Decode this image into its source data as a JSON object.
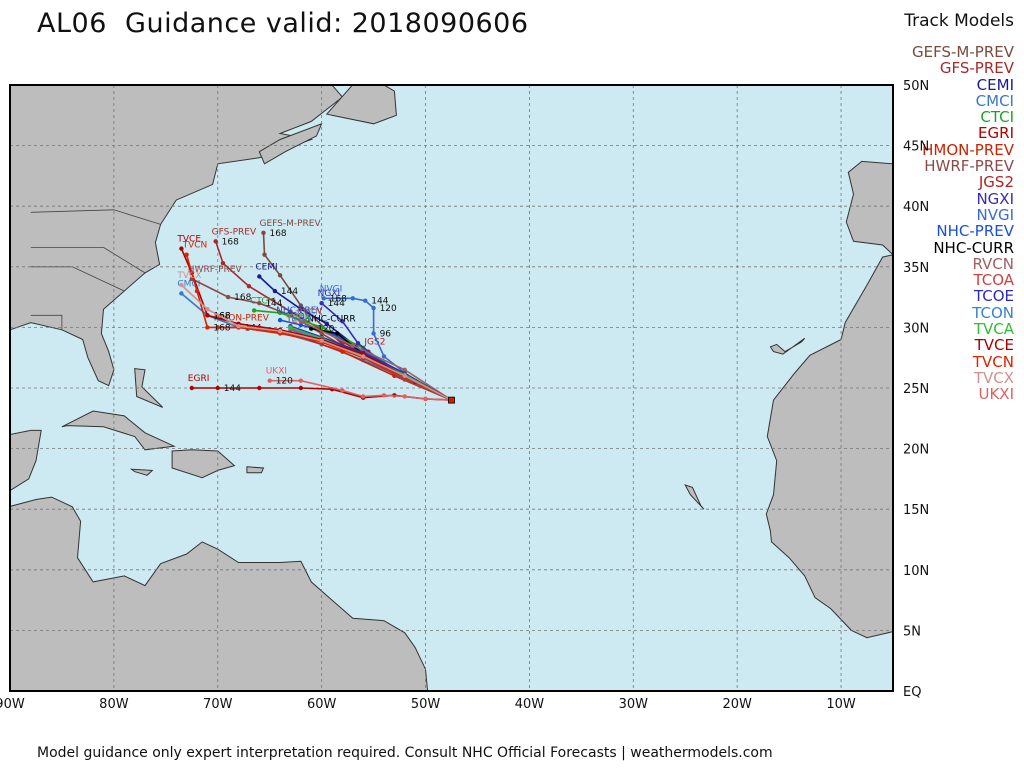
{
  "header": {
    "title": "AL06  Guidance valid: 2018090606"
  },
  "legend": {
    "title": "Track Models",
    "models": [
      {
        "name": "GEFS-M-PREV",
        "color": "#7a4a3a"
      },
      {
        "name": "GFS-PREV",
        "color": "#a52a2a"
      },
      {
        "name": "CEMI",
        "color": "#1a1a99"
      },
      {
        "name": "CMCI",
        "color": "#3a78c8"
      },
      {
        "name": "CTCI",
        "color": "#22a022"
      },
      {
        "name": "EGRI",
        "color": "#b00000"
      },
      {
        "name": "HMON-PREV",
        "color": "#cc2200"
      },
      {
        "name": "HWRF-PREV",
        "color": "#8b4a4a"
      },
      {
        "name": "JGS2",
        "color": "#b22222"
      },
      {
        "name": "NGXI",
        "color": "#3a2ab0"
      },
      {
        "name": "NVGI",
        "color": "#3a6ad0"
      },
      {
        "name": "NHC-PREV",
        "color": "#1a50d8"
      },
      {
        "name": "NHC-CURR",
        "color": "#000000"
      },
      {
        "name": "RVCN",
        "color": "#a06060"
      },
      {
        "name": "TCOA",
        "color": "#d04040"
      },
      {
        "name": "TCOE",
        "color": "#2a2ac0"
      },
      {
        "name": "TCON",
        "color": "#3a80d0"
      },
      {
        "name": "TVCA",
        "color": "#33bb33"
      },
      {
        "name": "TVCE",
        "color": "#aa0000"
      },
      {
        "name": "TVCN",
        "color": "#dd2200"
      },
      {
        "name": "TVCX",
        "color": "#d09090"
      },
      {
        "name": "UKXI",
        "color": "#e06060"
      }
    ]
  },
  "axes": {
    "lat_labels": [
      "50N",
      "45N",
      "40N",
      "35N",
      "30N",
      "25N",
      "20N",
      "15N",
      "10N",
      "5N",
      "EQ"
    ],
    "lon_labels": [
      "90W",
      "80W",
      "70W",
      "60W",
      "50W",
      "40W",
      "30W",
      "20W",
      "10W"
    ]
  },
  "colors": {
    "ocean": "#cde9f2",
    "land": "#bdbdbd",
    "grid": "#777777"
  },
  "map_tracks": [
    {
      "model": "GEFS-M-PREV",
      "color": "#7a4a3a",
      "label": "GEFS-M-PREV",
      "points": [
        [
          -47.5,
          24.0
        ],
        [
          -53,
          26.2
        ],
        [
          -58,
          28.6
        ],
        [
          -62,
          31.8
        ],
        [
          -64,
          34.3
        ],
        [
          -65.5,
          36.0
        ],
        [
          -65.6,
          37.8
        ]
      ],
      "hours": {
        "6": "168"
      }
    },
    {
      "model": "GFS-PREV",
      "color": "#a52a2a",
      "label": "GFS-PREV",
      "points": [
        [
          -47.5,
          24.0
        ],
        [
          -53,
          26.5
        ],
        [
          -58,
          28.8
        ],
        [
          -63,
          31.3
        ],
        [
          -67,
          33.4
        ],
        [
          -69.5,
          35.3
        ],
        [
          -70.2,
          37.1
        ]
      ],
      "hours": {
        "6": "168"
      }
    },
    {
      "model": "CEMI",
      "color": "#1a1a99",
      "label": "CEMI",
      "points": [
        [
          -47.5,
          24.0
        ],
        [
          -52,
          26.0
        ],
        [
          -56,
          28.0
        ],
        [
          -59.5,
          30.3
        ],
        [
          -62,
          31.5
        ],
        [
          -64.5,
          33.0
        ],
        [
          -66,
          34.2
        ]
      ],
      "hours": {
        "5": "144"
      }
    },
    {
      "model": "CMCI",
      "color": "#3a78c8",
      "label": "CMCI",
      "points": [
        [
          -47.5,
          24.0
        ],
        [
          -52,
          25.8
        ],
        [
          -56,
          27.3
        ],
        [
          -60,
          28.6
        ],
        [
          -64,
          29.6
        ],
        [
          -68,
          30.0
        ],
        [
          -71,
          31.0
        ],
        [
          -73.5,
          32.8
        ]
      ],
      "hours": {
        "5": "144",
        "6": "168"
      }
    },
    {
      "model": "CTCI",
      "color": "#22a022",
      "label": "CTCI",
      "points": [
        [
          -47.5,
          24.0
        ],
        [
          -52,
          26.0
        ],
        [
          -56,
          28.3
        ],
        [
          -60,
          30.0
        ],
        [
          -64,
          31.2
        ],
        [
          -66.5,
          31.4
        ]
      ],
      "hours": {}
    },
    {
      "model": "EGRI",
      "color": "#b00000",
      "label": "EGRI",
      "points": [
        [
          -47.5,
          24.0
        ],
        [
          -50,
          24.1
        ],
        [
          -53,
          24.4
        ],
        [
          -56,
          24.2
        ],
        [
          -59,
          24.9
        ],
        [
          -62,
          25.0
        ],
        [
          -66,
          25.0
        ],
        [
          -70,
          25.0
        ],
        [
          -72.5,
          25.0
        ]
      ],
      "hours": {
        "7": "144"
      }
    },
    {
      "model": "HMON-PREV",
      "color": "#cc2200",
      "label": "HMON-PREV",
      "points": [
        [
          -47.5,
          24.0
        ],
        [
          -53,
          26.0
        ],
        [
          -58,
          28.0
        ],
        [
          -63,
          29.5
        ],
        [
          -67,
          30.0
        ],
        [
          -70,
          30.0
        ]
      ],
      "hours": {}
    },
    {
      "model": "HWRF-PREV",
      "color": "#8b4a4a",
      "label": "HWRF-PREV",
      "points": [
        [
          -47.5,
          24.0
        ],
        [
          -52,
          25.7
        ],
        [
          -56,
          27.5
        ],
        [
          -60,
          29.5
        ],
        [
          -63,
          31.0
        ],
        [
          -66,
          32.0
        ],
        [
          -69,
          32.5
        ],
        [
          -72.5,
          34.0
        ]
      ],
      "hours": {
        "5": "144",
        "6": "168"
      }
    },
    {
      "model": "JGS2",
      "color": "#b22222",
      "label": "JGS2",
      "points": [
        [
          -47.5,
          24.0
        ],
        [
          -51,
          25.5
        ],
        [
          -54,
          26.8
        ],
        [
          -55.5,
          28.0
        ]
      ],
      "hours": {}
    },
    {
      "model": "NGXI",
      "color": "#3a2ab0",
      "label": "NGXI",
      "points": [
        [
          -47.5,
          24.0
        ],
        [
          -51,
          25.5
        ],
        [
          -54,
          27.0
        ],
        [
          -56.5,
          28.7
        ],
        [
          -58,
          30.5
        ],
        [
          -60,
          32.0
        ]
      ],
      "hours": {
        "5": "144"
      }
    },
    {
      "model": "NVGI",
      "color": "#3a6ad0",
      "label": "NVGI",
      "points": [
        [
          -47.5,
          24.0
        ],
        [
          -51,
          25.6
        ],
        [
          -54,
          27.6
        ],
        [
          -55,
          29.5
        ],
        [
          -55,
          31.6
        ],
        [
          -55.8,
          32.2
        ],
        [
          -57,
          32.4
        ],
        [
          -59.8,
          32.4
        ]
      ],
      "hours": {
        "3": "96",
        "4": "120",
        "5": "144",
        "7": "168"
      }
    },
    {
      "model": "NHC-PREV",
      "color": "#1a50d8",
      "label": "NHC-PREV",
      "points": [
        [
          -47.5,
          24.0
        ],
        [
          -52,
          26.2
        ],
        [
          -56,
          28.0
        ],
        [
          -59,
          29.5
        ],
        [
          -62,
          30.2
        ],
        [
          -64,
          30.6
        ]
      ],
      "hours": {}
    },
    {
      "model": "NHC-CURR",
      "color": "#000000",
      "label": "NHC-CURR",
      "points": [
        [
          -47.5,
          24.0
        ],
        [
          -52,
          26.0
        ],
        [
          -56,
          27.8
        ],
        [
          -58.5,
          29.5
        ],
        [
          -61,
          29.9
        ]
      ],
      "hours": {
        "4": "120"
      }
    },
    {
      "model": "RVCN",
      "color": "#a06060",
      "label": "RVCN",
      "points": [
        [
          -47.5,
          24.0
        ],
        [
          -52,
          26.5
        ],
        [
          -57,
          28.5
        ],
        [
          -62,
          30.5
        ]
      ],
      "hours": {}
    },
    {
      "model": "TCOA",
      "color": "#d04040",
      "label": "TCOA",
      "points": [
        [
          -47.5,
          24.0
        ],
        [
          -52,
          26.0
        ],
        [
          -56,
          27.5
        ],
        [
          -60,
          28.8
        ],
        [
          -63,
          29.8
        ]
      ],
      "hours": {}
    },
    {
      "model": "TCOE",
      "color": "#2a2ac0",
      "label": "TCOE",
      "points": [
        [
          -47.5,
          24.0
        ],
        [
          -52,
          26.2
        ],
        [
          -56,
          27.9
        ],
        [
          -60,
          29.2
        ],
        [
          -63,
          30.1
        ]
      ],
      "hours": {}
    },
    {
      "model": "TCON",
      "color": "#3a80d0",
      "label": "TCON",
      "points": [
        [
          -47.5,
          24.0
        ],
        [
          -52,
          25.9
        ],
        [
          -56,
          27.6
        ],
        [
          -60,
          29.0
        ],
        [
          -63,
          29.9
        ]
      ],
      "hours": {}
    },
    {
      "model": "TVCA",
      "color": "#33bb33",
      "label": "TVCA",
      "points": [
        [
          -47.5,
          24.0
        ],
        [
          -52,
          26.1
        ],
        [
          -56,
          27.7
        ],
        [
          -60,
          29.1
        ],
        [
          -63,
          30.0
        ]
      ],
      "hours": {}
    },
    {
      "model": "TVCE",
      "color": "#aa0000",
      "label": "TVCE",
      "points": [
        [
          -47.5,
          24.0
        ],
        [
          -52,
          26.0
        ],
        [
          -56,
          27.8
        ],
        [
          -60,
          29.0
        ],
        [
          -64,
          29.8
        ],
        [
          -68,
          30.3
        ],
        [
          -71,
          31.0
        ],
        [
          -72.5,
          34.5
        ],
        [
          -73.5,
          36.5
        ]
      ],
      "hours": {
        "6": "168"
      }
    },
    {
      "model": "TVCN",
      "color": "#dd2200",
      "label": "TVCN",
      "points": [
        [
          -47.5,
          24.0
        ],
        [
          -52,
          25.9
        ],
        [
          -56,
          27.5
        ],
        [
          -60,
          28.8
        ],
        [
          -64,
          29.5
        ],
        [
          -68,
          30.0
        ],
        [
          -71,
          30.0
        ],
        [
          -72,
          33.0
        ],
        [
          -73,
          36.0
        ]
      ],
      "hours": {
        "6": "168"
      }
    },
    {
      "model": "TVCX",
      "color": "#d09090",
      "label": "TVCX",
      "points": [
        [
          -47.5,
          24.0
        ],
        [
          -52,
          26.0
        ],
        [
          -56,
          27.6
        ],
        [
          -60,
          28.9
        ],
        [
          -64,
          29.7
        ],
        [
          -68,
          30.1
        ],
        [
          -71,
          31.5
        ],
        [
          -73.5,
          33.5
        ]
      ],
      "hours": {}
    },
    {
      "model": "UKXI",
      "color": "#e06060",
      "label": "UKXI",
      "points": [
        [
          -47.5,
          24.0
        ],
        [
          -50,
          24.1
        ],
        [
          -52,
          24.3
        ],
        [
          -54,
          24.4
        ],
        [
          -56,
          24.3
        ],
        [
          -58,
          24.8
        ],
        [
          -62,
          25.6
        ],
        [
          -65,
          25.6
        ]
      ],
      "hours": {
        "7": "120"
      }
    }
  ],
  "footer": {
    "text": "Model guidance only expert interpretation required. Consult NHC Official Forecasts | weathermodels.com"
  }
}
